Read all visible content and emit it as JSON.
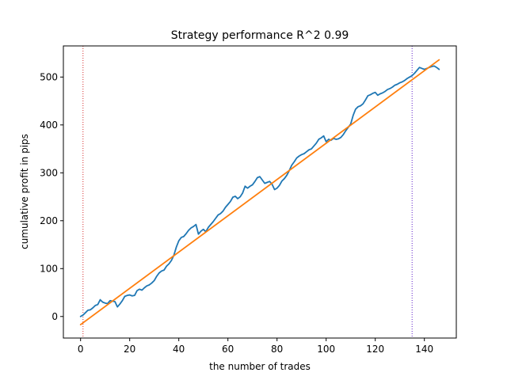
{
  "chart_data": {
    "type": "line",
    "title": "Strategy performance R^2 0.99",
    "xlabel": "the number of trades",
    "ylabel": "cumulative profit in pips",
    "xlim": [
      -7,
      153
    ],
    "ylim": [
      -45,
      565
    ],
    "xticks": [
      0,
      20,
      40,
      60,
      80,
      100,
      120,
      140
    ],
    "yticks": [
      0,
      100,
      200,
      300,
      400,
      500
    ],
    "grid": false,
    "vlines": [
      {
        "x": 1,
        "color": "#d62728",
        "style": "dotted"
      },
      {
        "x": 135,
        "color": "#5a1ac9",
        "style": "dotted"
      }
    ],
    "series": [
      {
        "color": "#1f77b4",
        "x": [
          0,
          1,
          2,
          3,
          4,
          5,
          6,
          7,
          8,
          9,
          10,
          11,
          12,
          13,
          14,
          15,
          16,
          17,
          18,
          19,
          20,
          21,
          22,
          23,
          24,
          25,
          26,
          27,
          28,
          29,
          30,
          31,
          32,
          33,
          34,
          35,
          36,
          37,
          38,
          39,
          40,
          41,
          42,
          43,
          44,
          45,
          46,
          47,
          48,
          49,
          50,
          51,
          52,
          53,
          54,
          55,
          56,
          57,
          58,
          59,
          60,
          61,
          62,
          63,
          64,
          65,
          66,
          67,
          68,
          69,
          70,
          71,
          72,
          73,
          74,
          75,
          76,
          77,
          78,
          79,
          80,
          81,
          82,
          83,
          84,
          85,
          86,
          87,
          88,
          89,
          90,
          91,
          92,
          93,
          94,
          95,
          96,
          97,
          98,
          99,
          100,
          101,
          102,
          103,
          104,
          105,
          106,
          107,
          108,
          109,
          110,
          111,
          112,
          113,
          114,
          115,
          116,
          117,
          118,
          119,
          120,
          121,
          122,
          123,
          124,
          125,
          126,
          127,
          128,
          129,
          130,
          131,
          132,
          133,
          134,
          135,
          136,
          137,
          138,
          139,
          140,
          141,
          142,
          143,
          144,
          145,
          146
        ],
        "y": [
          0,
          3,
          8,
          13,
          14,
          18,
          23,
          25,
          35,
          30,
          28,
          27,
          33,
          32,
          31,
          20,
          26,
          33,
          42,
          44,
          45,
          43,
          44,
          54,
          57,
          55,
          60,
          64,
          66,
          70,
          75,
          84,
          91,
          95,
          97,
          105,
          110,
          117,
          128,
          145,
          158,
          165,
          167,
          173,
          180,
          185,
          188,
          192,
          172,
          178,
          182,
          177,
          186,
          192,
          198,
          205,
          212,
          215,
          220,
          228,
          234,
          240,
          249,
          251,
          246,
          250,
          258,
          272,
          268,
          272,
          275,
          282,
          290,
          292,
          285,
          278,
          280,
          282,
          276,
          265,
          268,
          274,
          283,
          288,
          295,
          305,
          316,
          323,
          331,
          335,
          338,
          340,
          344,
          348,
          350,
          356,
          362,
          370,
          373,
          377,
          365,
          370,
          368,
          372,
          370,
          371,
          374,
          380,
          388,
          395,
          402,
          420,
          433,
          438,
          440,
          444,
          452,
          461,
          463,
          466,
          468,
          462,
          465,
          467,
          470,
          474,
          476,
          479,
          483,
          485,
          488,
          490,
          493,
          497,
          500,
          503,
          508,
          514,
          520,
          518,
          516,
          518,
          520,
          522,
          523,
          520,
          516
        ]
      },
      {
        "color": "#ff7f0e",
        "x": [
          0,
          146
        ],
        "y": [
          -17,
          536
        ]
      }
    ]
  }
}
